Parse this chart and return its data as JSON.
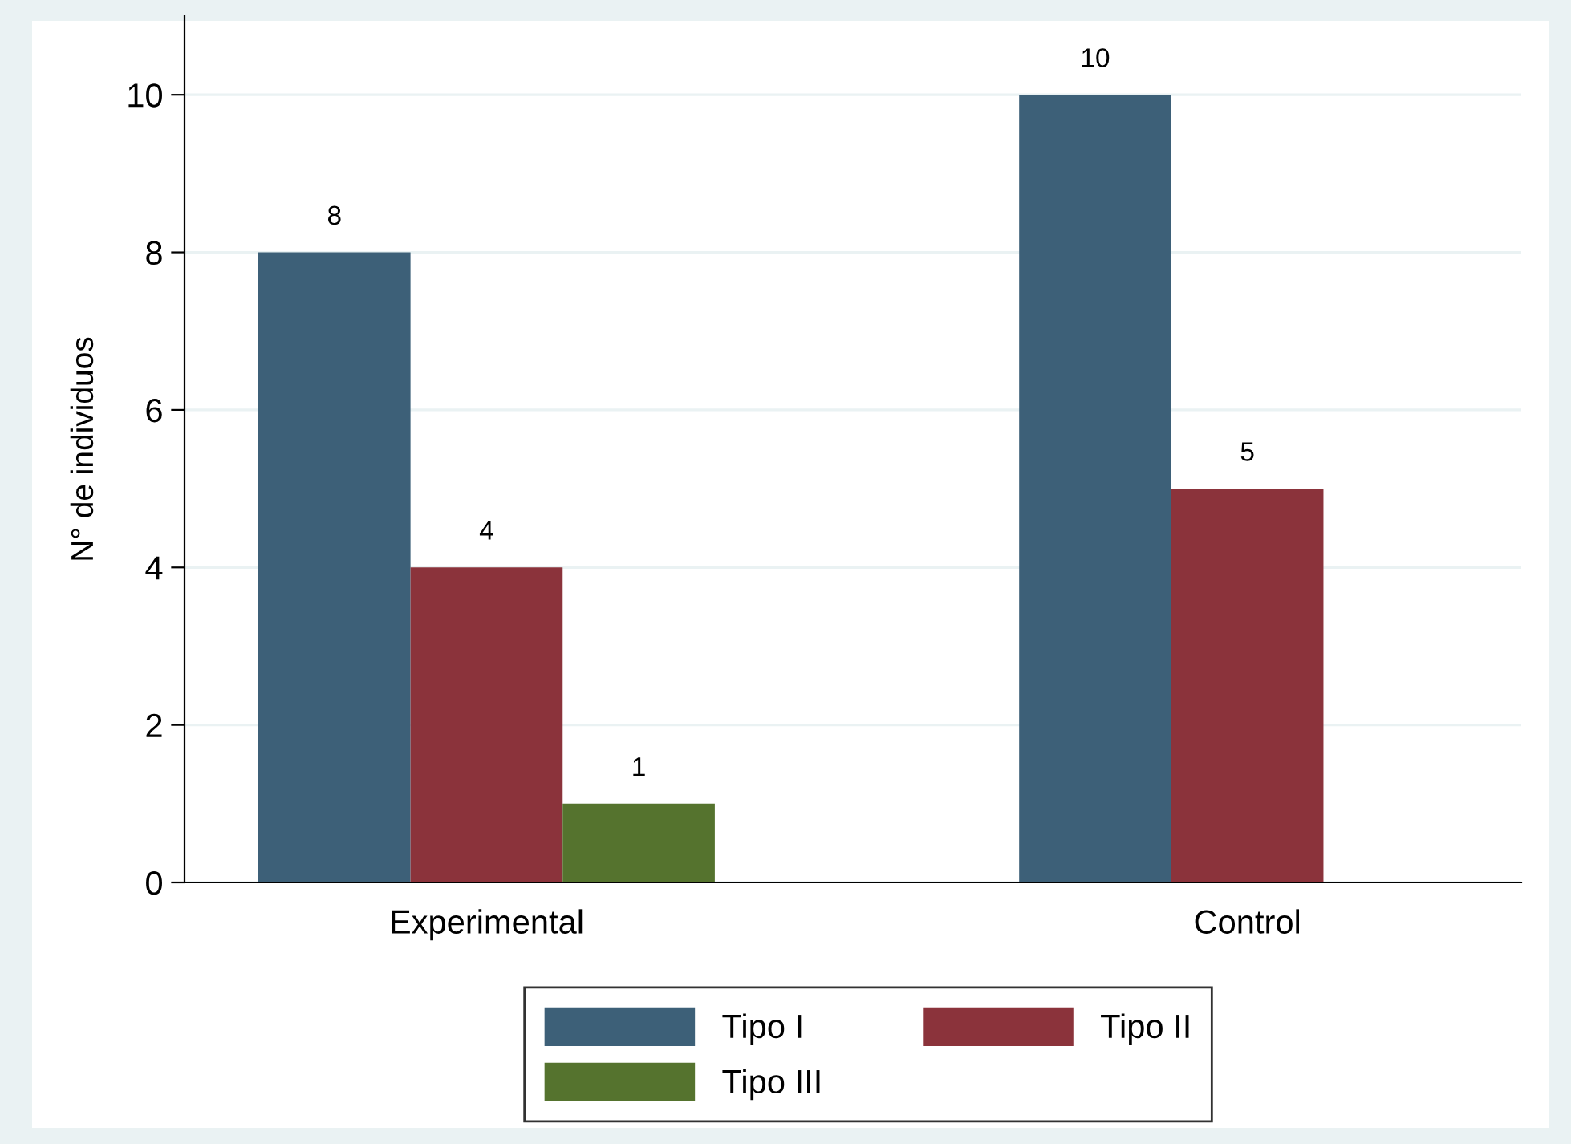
{
  "chart_data": {
    "type": "bar",
    "ylabel": "N° de individuos",
    "categories": [
      "Experimental",
      "Control"
    ],
    "series": [
      {
        "name": "Tipo I",
        "color": "#3d6078",
        "values": [
          8,
          10
        ]
      },
      {
        "name": "Tipo II",
        "color": "#8b333b",
        "values": [
          4,
          5
        ]
      },
      {
        "name": "Tipo III",
        "color": "#55732e",
        "values": [
          1,
          null
        ]
      }
    ],
    "ylim": [
      0,
      11
    ],
    "yticks": [
      0,
      2,
      4,
      6,
      8,
      10
    ],
    "grid": "y",
    "legend": "bottom",
    "data_labels": true
  }
}
